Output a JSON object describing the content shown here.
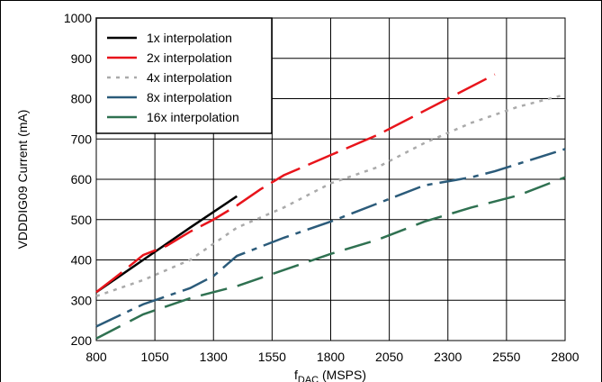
{
  "chart_data": {
    "type": "line",
    "x_label": [
      "f",
      "DAC",
      " (MSPS)"
    ],
    "y_label": "VDDDIG09 Current (mA)",
    "series": [
      {
        "name": "1x interpolation",
        "color": "#000000",
        "x": [
          800,
          1000,
          1200,
          1400
        ],
        "values": [
          320,
          400,
          480,
          558
        ]
      },
      {
        "name": "2x interpolation",
        "color": "#e8141b",
        "x": [
          800,
          900,
          1000,
          1100,
          1200,
          1300,
          1400,
          1500,
          1600,
          1800,
          2000,
          2200,
          2300,
          2500
        ],
        "values": [
          320,
          365,
          412,
          435,
          470,
          500,
          535,
          575,
          610,
          660,
          710,
          770,
          800,
          860
        ]
      },
      {
        "name": "4x interpolation",
        "color": "#aaaaaa",
        "x": [
          800,
          1000,
          1200,
          1400,
          1600,
          1800,
          2000,
          2200,
          2400,
          2600,
          2800
        ],
        "values": [
          310,
          350,
          400,
          480,
          530,
          590,
          630,
          690,
          740,
          780,
          810
        ]
      },
      {
        "name": "8x interpolation",
        "color": "#2b5b7a",
        "x": [
          800,
          1000,
          1200,
          1300,
          1400,
          1600,
          1800,
          2000,
          2200,
          2400,
          2500,
          2800
        ],
        "values": [
          235,
          290,
          330,
          360,
          410,
          455,
          495,
          540,
          585,
          605,
          620,
          675
        ]
      },
      {
        "name": "16x interpolation",
        "color": "#2f7151",
        "x": [
          800,
          1000,
          1200,
          1400,
          1600,
          1800,
          2000,
          2200,
          2400,
          2600,
          2800
        ],
        "values": [
          205,
          265,
          305,
          335,
          375,
          415,
          450,
          495,
          530,
          560,
          605
        ]
      }
    ],
    "xlim": [
      800,
      2800
    ],
    "xticks": [
      800,
      1050,
      1300,
      1550,
      1800,
      2050,
      2300,
      2550,
      2800
    ],
    "ylim": [
      200,
      1000
    ],
    "yticks": [
      200,
      300,
      400,
      500,
      600,
      700,
      800,
      900,
      1000
    ],
    "grid": true,
    "legend": "top-left"
  }
}
